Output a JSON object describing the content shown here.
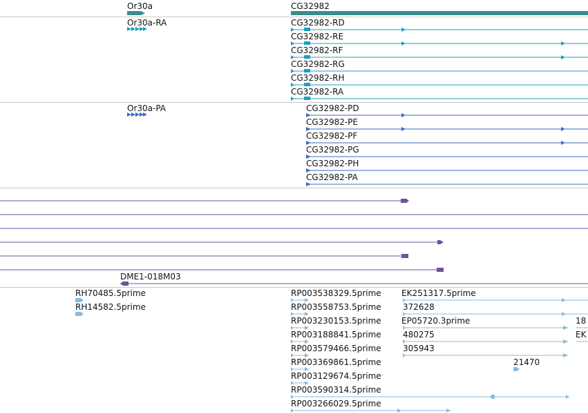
{
  "colors": {
    "gene": "#3b8c8c",
    "transcript": "#1aa0c0",
    "protein": "#3a6cc0",
    "alignment": "#7050a0",
    "est": "#88bbe0",
    "separator": "#c8c8c8"
  },
  "tracks": {
    "genes": {
      "features": [
        {
          "label": "Or30a"
        },
        {
          "label": "CG32982"
        }
      ]
    },
    "transcripts": {
      "features": [
        {
          "label": "Or30a-RA"
        },
        {
          "label": "CG32982-RD"
        },
        {
          "label": "CG32982-RE"
        },
        {
          "label": "CG32982-RF"
        },
        {
          "label": "CG32982-RG"
        },
        {
          "label": "CG32982-RH"
        },
        {
          "label": "CG32982-RA"
        }
      ]
    },
    "proteins": {
      "features": [
        {
          "label": "Or30a-PA"
        },
        {
          "label": "CG32982-PD"
        },
        {
          "label": "CG32982-PE"
        },
        {
          "label": "CG32982-PF"
        },
        {
          "label": "CG32982-PG"
        },
        {
          "label": "CG32982-PH"
        },
        {
          "label": "CG32982-PA"
        }
      ]
    },
    "alignments": {
      "features": [
        {
          "label": "DME1-018M03"
        }
      ]
    },
    "ests": {
      "features": [
        {
          "label": "RH70485.5prime"
        },
        {
          "label": "RH14582.5prime"
        },
        {
          "label": "RP003538329.5prime"
        },
        {
          "label": "RP003558753.5prime"
        },
        {
          "label": "RP003230153.5prime"
        },
        {
          "label": "RP003188841.5prime"
        },
        {
          "label": "RP003579466.5prime"
        },
        {
          "label": "RP003369861.5prime"
        },
        {
          "label": "RP003129674.5prime"
        },
        {
          "label": "RP003590314.5prime"
        },
        {
          "label": "RP003266029.5prime"
        },
        {
          "label": "EK251317.5prime"
        },
        {
          "label": "372628"
        },
        {
          "label": "EP05720.3prime"
        },
        {
          "label": "480275"
        },
        {
          "label": "305943"
        },
        {
          "label": "21470"
        },
        {
          "label": "18"
        },
        {
          "label": "EK"
        }
      ]
    }
  }
}
